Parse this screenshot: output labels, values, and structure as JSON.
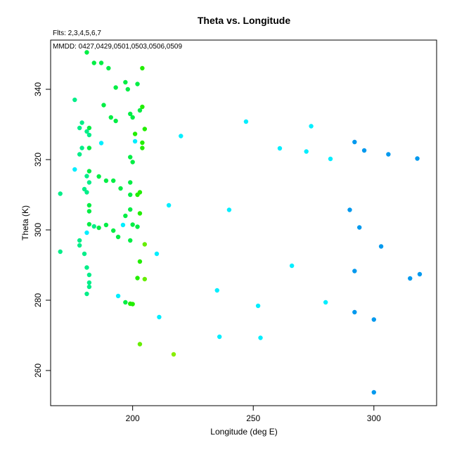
{
  "chart_data": {
    "type": "scatter",
    "title": "Theta vs. Longitude",
    "subtitle_fits": "Flts: 2,3,4,5,6,7",
    "subtitle_dates": "MMDD: 0427,0429,0501,0503,0506,0509",
    "xlabel": "Longitude (deg E)",
    "ylabel": "Theta (K)",
    "xlim": [
      166,
      326
    ],
    "ylim": [
      250,
      354
    ],
    "xticks": [
      200,
      250,
      300
    ],
    "yticks": [
      260,
      280,
      300,
      320,
      340
    ],
    "grid": false,
    "points": [
      {
        "x": 181,
        "y": 350.5,
        "c": "#00ee44"
      },
      {
        "x": 184,
        "y": 347.5,
        "c": "#00ee44"
      },
      {
        "x": 187,
        "y": 347.5,
        "c": "#00ee44"
      },
      {
        "x": 190,
        "y": 346,
        "c": "#00ee44"
      },
      {
        "x": 204,
        "y": 346,
        "c": "#22ee00"
      },
      {
        "x": 197,
        "y": 342,
        "c": "#00ee44"
      },
      {
        "x": 202,
        "y": 341.5,
        "c": "#00ee44"
      },
      {
        "x": 193,
        "y": 340.5,
        "c": "#00ee44"
      },
      {
        "x": 198,
        "y": 340,
        "c": "#00ee44"
      },
      {
        "x": 176,
        "y": 337,
        "c": "#00ee88"
      },
      {
        "x": 188,
        "y": 335.5,
        "c": "#00ee44"
      },
      {
        "x": 204,
        "y": 335,
        "c": "#22ee00"
      },
      {
        "x": 203,
        "y": 334,
        "c": "#00ee44"
      },
      {
        "x": 199,
        "y": 333,
        "c": "#00ee44"
      },
      {
        "x": 200,
        "y": 332,
        "c": "#00ee44"
      },
      {
        "x": 191,
        "y": 332,
        "c": "#00ee44"
      },
      {
        "x": 193,
        "y": 331,
        "c": "#00ee44"
      },
      {
        "x": 179,
        "y": 330.5,
        "c": "#00ee88"
      },
      {
        "x": 247,
        "y": 330.8,
        "c": "#00eeff"
      },
      {
        "x": 274,
        "y": 329.5,
        "c": "#00eeff"
      },
      {
        "x": 178,
        "y": 329,
        "c": "#00ee88"
      },
      {
        "x": 182,
        "y": 329,
        "c": "#00ee44"
      },
      {
        "x": 205,
        "y": 328.7,
        "c": "#22ee00"
      },
      {
        "x": 181,
        "y": 328,
        "c": "#00ee88"
      },
      {
        "x": 182,
        "y": 327,
        "c": "#00ee88"
      },
      {
        "x": 201,
        "y": 327.3,
        "c": "#22ee00"
      },
      {
        "x": 220,
        "y": 326.7,
        "c": "#00eeff"
      },
      {
        "x": 187,
        "y": 324.7,
        "c": "#00eeff"
      },
      {
        "x": 201,
        "y": 325.2,
        "c": "#00eeff"
      },
      {
        "x": 204,
        "y": 324.8,
        "c": "#22ee00"
      },
      {
        "x": 292,
        "y": 325,
        "c": "#0099ee"
      },
      {
        "x": 179,
        "y": 323.3,
        "c": "#00ee88"
      },
      {
        "x": 182,
        "y": 323.3,
        "c": "#00ee44"
      },
      {
        "x": 204,
        "y": 323.3,
        "c": "#22ee00"
      },
      {
        "x": 261,
        "y": 323.2,
        "c": "#00eeff"
      },
      {
        "x": 296,
        "y": 322.6,
        "c": "#0099ee"
      },
      {
        "x": 272,
        "y": 322.3,
        "c": "#00eeff"
      },
      {
        "x": 306,
        "y": 321.5,
        "c": "#0099ee"
      },
      {
        "x": 178,
        "y": 321.5,
        "c": "#00ee88"
      },
      {
        "x": 199,
        "y": 320.7,
        "c": "#00ee44"
      },
      {
        "x": 282,
        "y": 320.2,
        "c": "#00eeff"
      },
      {
        "x": 318,
        "y": 320.3,
        "c": "#0099ee"
      },
      {
        "x": 200,
        "y": 319.3,
        "c": "#00ee44"
      },
      {
        "x": 176,
        "y": 317.2,
        "c": "#00eeff"
      },
      {
        "x": 182,
        "y": 316.7,
        "c": "#00ee44"
      },
      {
        "x": 181,
        "y": 315.3,
        "c": "#00ee88"
      },
      {
        "x": 186,
        "y": 315.2,
        "c": "#00ee44"
      },
      {
        "x": 189,
        "y": 314,
        "c": "#00ee44"
      },
      {
        "x": 192,
        "y": 314,
        "c": "#00ee44"
      },
      {
        "x": 182,
        "y": 313.5,
        "c": "#00ee88"
      },
      {
        "x": 199,
        "y": 313.5,
        "c": "#00ee44"
      },
      {
        "x": 180,
        "y": 311.6,
        "c": "#00ee88"
      },
      {
        "x": 195,
        "y": 311.8,
        "c": "#00ee44"
      },
      {
        "x": 181,
        "y": 310.7,
        "c": "#00ee88"
      },
      {
        "x": 203,
        "y": 310.7,
        "c": "#22ee00"
      },
      {
        "x": 202,
        "y": 310,
        "c": "#22ee00"
      },
      {
        "x": 199,
        "y": 310,
        "c": "#00ee44"
      },
      {
        "x": 170,
        "y": 310.3,
        "c": "#00ee88"
      },
      {
        "x": 182,
        "y": 307,
        "c": "#00ee44"
      },
      {
        "x": 215,
        "y": 307,
        "c": "#00eeff"
      },
      {
        "x": 182,
        "y": 305.3,
        "c": "#00ee44"
      },
      {
        "x": 199,
        "y": 305.8,
        "c": "#00ee44"
      },
      {
        "x": 240,
        "y": 305.7,
        "c": "#00eeff"
      },
      {
        "x": 290,
        "y": 305.7,
        "c": "#0099ee"
      },
      {
        "x": 203,
        "y": 304.7,
        "c": "#22ee00"
      },
      {
        "x": 197,
        "y": 304,
        "c": "#00ee44"
      },
      {
        "x": 182,
        "y": 301.6,
        "c": "#00ee44"
      },
      {
        "x": 184,
        "y": 301,
        "c": "#00ee88"
      },
      {
        "x": 189,
        "y": 301.4,
        "c": "#00ee44"
      },
      {
        "x": 196,
        "y": 301.4,
        "c": "#00eeff"
      },
      {
        "x": 200,
        "y": 301.5,
        "c": "#00ee44"
      },
      {
        "x": 186,
        "y": 300.6,
        "c": "#00ee44"
      },
      {
        "x": 202,
        "y": 300.9,
        "c": "#00ee44"
      },
      {
        "x": 294,
        "y": 300.7,
        "c": "#0099ee"
      },
      {
        "x": 181,
        "y": 299.2,
        "c": "#00eeff"
      },
      {
        "x": 192,
        "y": 299.8,
        "c": "#00ee44"
      },
      {
        "x": 194,
        "y": 298,
        "c": "#00ee44"
      },
      {
        "x": 178,
        "y": 297,
        "c": "#00ee88"
      },
      {
        "x": 199,
        "y": 297,
        "c": "#00ee44"
      },
      {
        "x": 178,
        "y": 295.6,
        "c": "#00ee88"
      },
      {
        "x": 205,
        "y": 295.9,
        "c": "#66ee00"
      },
      {
        "x": 303,
        "y": 295.3,
        "c": "#0099ee"
      },
      {
        "x": 170,
        "y": 293.8,
        "c": "#00ee88"
      },
      {
        "x": 180,
        "y": 293.2,
        "c": "#00ee88"
      },
      {
        "x": 210,
        "y": 293.2,
        "c": "#00eeff"
      },
      {
        "x": 203,
        "y": 291,
        "c": "#22ee00"
      },
      {
        "x": 181,
        "y": 289.3,
        "c": "#00ee88"
      },
      {
        "x": 266,
        "y": 289.8,
        "c": "#00eeff"
      },
      {
        "x": 292,
        "y": 288.3,
        "c": "#0099ee"
      },
      {
        "x": 182,
        "y": 287.2,
        "c": "#00ee88"
      },
      {
        "x": 319,
        "y": 287.4,
        "c": "#0099ee"
      },
      {
        "x": 202,
        "y": 286.3,
        "c": "#22ee00"
      },
      {
        "x": 205,
        "y": 286,
        "c": "#66ee00"
      },
      {
        "x": 315,
        "y": 286.2,
        "c": "#0099ee"
      },
      {
        "x": 182,
        "y": 285,
        "c": "#00ee88"
      },
      {
        "x": 182,
        "y": 283.8,
        "c": "#00ee88"
      },
      {
        "x": 235,
        "y": 282.8,
        "c": "#00eeff"
      },
      {
        "x": 181,
        "y": 281.8,
        "c": "#00ee88"
      },
      {
        "x": 194,
        "y": 281.2,
        "c": "#00eeff"
      },
      {
        "x": 197,
        "y": 279.4,
        "c": "#00ee44"
      },
      {
        "x": 199,
        "y": 279,
        "c": "#22ee00"
      },
      {
        "x": 200,
        "y": 278.9,
        "c": "#22ee00"
      },
      {
        "x": 280,
        "y": 279.4,
        "c": "#00eeff"
      },
      {
        "x": 252,
        "y": 278.4,
        "c": "#00eeff"
      },
      {
        "x": 292,
        "y": 276.6,
        "c": "#0099ee"
      },
      {
        "x": 211,
        "y": 275.2,
        "c": "#00eeff"
      },
      {
        "x": 300,
        "y": 274.5,
        "c": "#0099ee"
      },
      {
        "x": 236,
        "y": 269.6,
        "c": "#00eeff"
      },
      {
        "x": 253,
        "y": 269.3,
        "c": "#00eeff"
      },
      {
        "x": 203,
        "y": 267.5,
        "c": "#66ee00"
      },
      {
        "x": 217,
        "y": 264.6,
        "c": "#88ee00"
      },
      {
        "x": 300,
        "y": 253.8,
        "c": "#0099ee"
      }
    ]
  }
}
